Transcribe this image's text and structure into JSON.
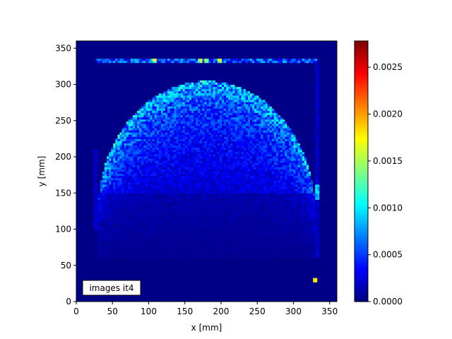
{
  "chart_data": {
    "type": "heatmap",
    "xlabel": "x [mm]",
    "ylabel": "y [mm]",
    "xlim": [
      0,
      360
    ],
    "ylim": [
      0,
      360
    ],
    "x_ticks": [
      0,
      50,
      100,
      150,
      200,
      250,
      300,
      350
    ],
    "y_ticks": [
      0,
      50,
      100,
      150,
      200,
      250,
      300,
      350
    ],
    "x_tick_labels": [
      "0",
      "50",
      "100",
      "150",
      "200",
      "250",
      "300",
      "350"
    ],
    "y_tick_labels": [
      "0",
      "50",
      "100",
      "150",
      "200",
      "250",
      "300",
      "350"
    ],
    "colormap": "jet",
    "colorbar": {
      "range": [
        0,
        0.00278
      ],
      "ticks": [
        0,
        0.0005,
        0.001,
        0.0015,
        0.002,
        0.0025
      ],
      "tick_labels": [
        "0.0000",
        "0.0005",
        "0.0010",
        "0.0015",
        "0.0020",
        "0.0025"
      ]
    },
    "annotation": "images it4",
    "features": {
      "background_value": 2e-05,
      "object_dome": {
        "center_x": 180,
        "base_y": 120,
        "top_y": 300,
        "half_width": 150,
        "peak_value": 0.00095
      },
      "top_line": {
        "y": 332,
        "x_range": [
          28,
          332
        ],
        "value": 0.0006,
        "hot_spots_x": [
          108,
          170,
          180,
          198
        ],
        "hot_value": 0.0015
      },
      "right_edge_spot": {
        "x": 332,
        "y": 152,
        "value": 0.001
      },
      "corner_spot": {
        "x": 330,
        "y": 30,
        "value": 0.0018
      }
    }
  }
}
